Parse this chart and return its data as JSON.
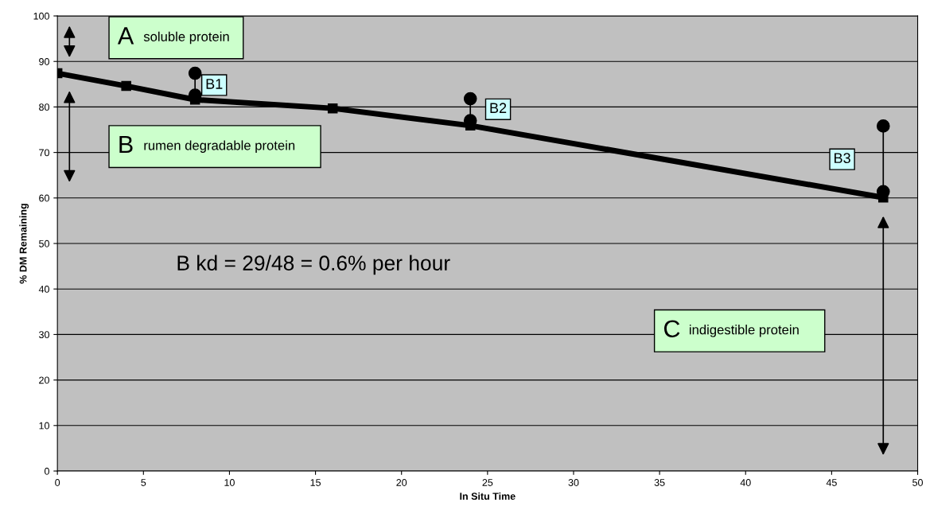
{
  "chart_data": {
    "type": "line",
    "xlabel": "In Situ Time",
    "ylabel": "% DM Remaining",
    "series": [
      {
        "x": [
          0,
          4,
          8,
          16,
          24,
          48
        ],
        "values": [
          87.4,
          84.6,
          81.6,
          79.7,
          75.9,
          60.1
        ],
        "color": "#000000",
        "marker": "square"
      },
      {
        "x": [
          8,
          8
        ],
        "values": [
          87.4,
          82.6
        ],
        "color": "#000000",
        "marker": "circle"
      },
      {
        "x": [
          24,
          24
        ],
        "values": [
          81.8,
          77
        ],
        "color": "#000000",
        "marker": "circle"
      },
      {
        "x": [
          48,
          48
        ],
        "values": [
          75.8,
          61.4
        ],
        "color": "#000000",
        "marker": "circle"
      }
    ],
    "annotations": [
      "A",
      "soluble protein",
      "B",
      "rumen degradable protein",
      "B1",
      "B2",
      "B3",
      "C",
      "indigestible protein",
      "B kd = 29/48 = 0.6% per hour"
    ],
    "xlim": [
      0,
      50
    ],
    "xticks": [
      0,
      5,
      10,
      15,
      20,
      25,
      30,
      35,
      40,
      45,
      50
    ],
    "ylim": [
      0,
      100
    ],
    "yticks": [
      0,
      10,
      20,
      30,
      40,
      50,
      60,
      70,
      80,
      90,
      100
    ],
    "grid": "y"
  }
}
